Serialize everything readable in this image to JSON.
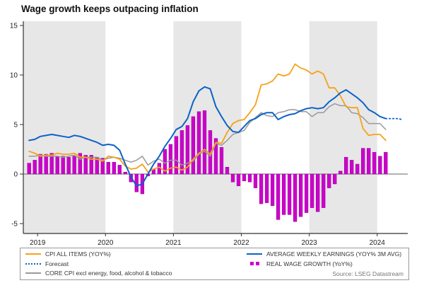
{
  "title": "Wage growth keeps outpacing inflation",
  "source": "Source: LSEG Datastream",
  "legend": {
    "cpi": {
      "label": "CPI ALL ITEMS (YOY%)"
    },
    "forecast": {
      "label": "Forecast"
    },
    "core": {
      "label": "CORE CPI excl energy, food, alcohol & tobacco"
    },
    "awe": {
      "label": "AVERAGE WEEKLY EARNINGS (YOY% 3M AVG)"
    },
    "rwg": {
      "label": "REAL WAGE GROWTH (YoY%)"
    }
  },
  "chart_data": {
    "type": "line+bar",
    "title": "Wage growth keeps outpacing inflation",
    "xlabel": "",
    "ylabel": "",
    "ylim": [
      -6,
      15.5
    ],
    "y_ticks": [
      15,
      10,
      5,
      0,
      -5
    ],
    "x_years": [
      2019,
      2020,
      2021,
      2022,
      2023,
      2024
    ],
    "grid": "none",
    "legend_position": "bottom-box",
    "colors": {
      "band": "#E7E7E7",
      "axis": "#333333",
      "cpi": "#F7A11A",
      "core": "#9A9A9A",
      "awe": "#0B62C8",
      "bars": "#CC00CC"
    },
    "start": {
      "year": 2018,
      "month": 11
    },
    "bands": [
      [
        2018.79,
        2020
      ],
      [
        2021,
        2022
      ],
      [
        2023,
        2024
      ]
    ],
    "series": [
      {
        "id": "rwg",
        "name": "REAL WAGE GROWTH (YoY%)",
        "type": "bar",
        "color": "#CC00CC",
        "values": [
          1.1,
          1.4,
          2.0,
          2.0,
          2.1,
          1.8,
          1.8,
          1.7,
          1.8,
          2.1,
          1.9,
          1.9,
          1.7,
          1.6,
          1.2,
          1.2,
          0.9,
          0.2,
          -0.8,
          -1.8,
          -2.0,
          -0.2,
          0.5,
          1.1,
          2.5,
          3.0,
          3.8,
          4.4,
          4.9,
          5.8,
          6.3,
          6.4,
          4.4,
          3.6,
          2.7,
          0.7,
          -0.8,
          -1.2,
          -0.7,
          -0.8,
          -1.4,
          -3.0,
          -2.9,
          -3.2,
          -4.6,
          -4.1,
          -4.1,
          -4.8,
          -4.3,
          -3.9,
          -3.4,
          -3.8,
          -3.4,
          -1.4,
          -1.0,
          0.3,
          1.7,
          1.4,
          1.0,
          2.6,
          2.6,
          2.2,
          1.8,
          2.2
        ]
      },
      {
        "id": "core",
        "name": "CORE CPI excl energy, food, alcohol & tobacco",
        "type": "line",
        "color": "#9A9A9A",
        "width": 1.5,
        "values": [
          1.8,
          1.8,
          1.9,
          1.8,
          1.8,
          1.8,
          1.7,
          1.8,
          1.9,
          1.5,
          1.7,
          1.7,
          1.7,
          1.4,
          1.6,
          1.7,
          1.6,
          1.4,
          1.2,
          1.4,
          1.8,
          0.9,
          1.3,
          1.5,
          1.1,
          1.4,
          1.4,
          0.9,
          1.1,
          1.3,
          2.0,
          2.3,
          1.8,
          3.1,
          2.9,
          3.4,
          4.0,
          4.2,
          4.4,
          5.2,
          5.7,
          6.2,
          5.9,
          5.8,
          6.2,
          6.3,
          6.5,
          6.5,
          6.3,
          6.3,
          5.8,
          6.2,
          6.2,
          6.8,
          7.1,
          6.9,
          6.9,
          6.2,
          6.1,
          5.7,
          5.1,
          5.1,
          5.1,
          4.5
        ]
      },
      {
        "id": "cpi",
        "name": "CPI ALL ITEMS (YOY%)",
        "type": "line",
        "color": "#F7A11A",
        "width": 1.8,
        "values": [
          2.3,
          2.1,
          1.8,
          1.9,
          1.9,
          2.1,
          2.0,
          2.0,
          2.1,
          1.7,
          1.7,
          1.5,
          1.5,
          1.3,
          1.8,
          1.7,
          1.5,
          0.8,
          0.5,
          0.6,
          1.0,
          0.2,
          0.5,
          0.7,
          0.3,
          0.6,
          0.7,
          0.4,
          0.7,
          1.5,
          2.1,
          2.5,
          2.0,
          3.2,
          3.1,
          4.2,
          5.1,
          5.4,
          5.5,
          6.2,
          7.0,
          9.0,
          9.1,
          9.4,
          10.1,
          9.9,
          10.1,
          11.1,
          10.7,
          10.5,
          10.1,
          10.4,
          10.1,
          8.7,
          8.7,
          7.9,
          6.8,
          6.7,
          6.7,
          4.6,
          3.9,
          4.0,
          4.0,
          3.4
        ]
      },
      {
        "id": "awe",
        "name": "AVERAGE WEEKLY EARNINGS (YOY% 3M AVG)",
        "type": "line",
        "color": "#0B62C8",
        "width": 2,
        "values": [
          3.4,
          3.5,
          3.8,
          3.9,
          4.0,
          3.9,
          3.8,
          3.7,
          3.9,
          3.8,
          3.6,
          3.4,
          3.2,
          2.9,
          3.0,
          2.9,
          2.4,
          1.0,
          -0.3,
          -1.2,
          -1.0,
          0.0,
          1.0,
          1.8,
          2.8,
          3.6,
          4.5,
          4.8,
          5.6,
          7.3,
          8.4,
          8.8,
          8.6,
          6.8,
          5.8,
          4.9,
          4.3,
          4.2,
          4.8,
          5.4,
          5.6,
          6.0,
          6.2,
          6.2,
          5.5,
          5.8,
          6.0,
          6.1,
          6.4,
          6.6,
          6.7,
          6.6,
          6.7,
          7.3,
          7.7,
          8.2,
          8.5,
          8.1,
          7.7,
          7.2,
          6.5,
          6.2,
          5.8,
          5.6
        ]
      }
    ],
    "forecast": {
      "name": "Forecast",
      "color": "#0B62C8",
      "start": {
        "year": 2024,
        "month": 3
      },
      "values": [
        5.6,
        5.6,
        5.5
      ]
    }
  }
}
